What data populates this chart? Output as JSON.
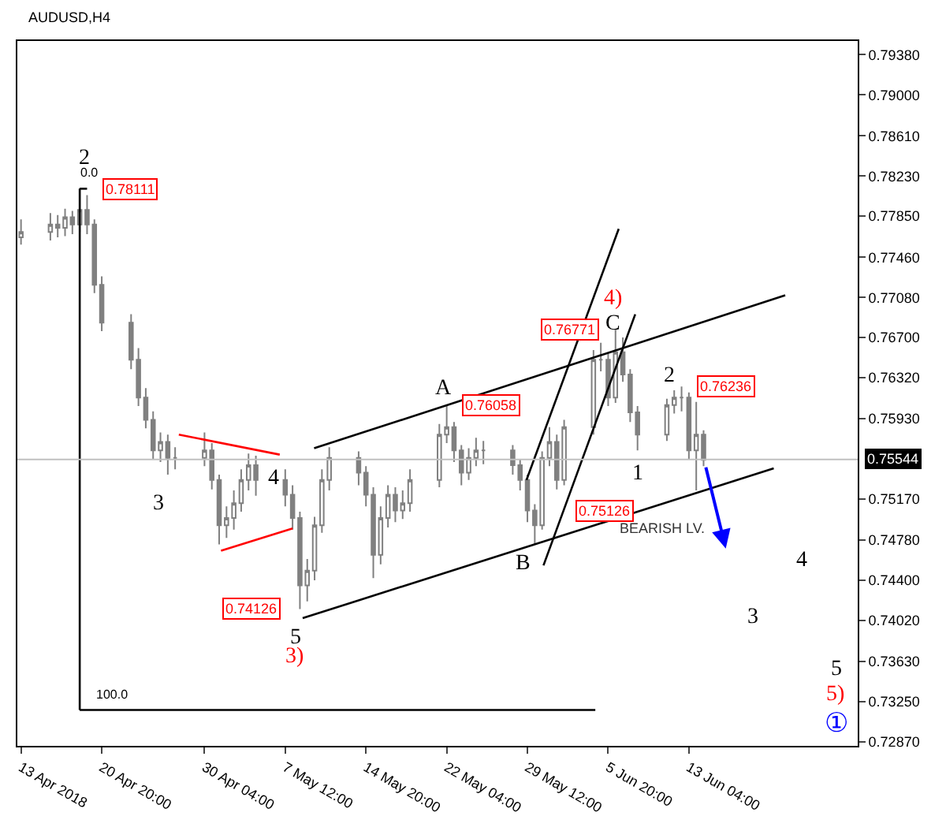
{
  "chart_data": {
    "type": "candlestick",
    "title": "AUDUSD,H4",
    "color": "#808080",
    "x": [
      "2018-04-13T12:00",
      "2018-04-16T04:00",
      "2018-04-16T20:00",
      "2018-04-17T12:00",
      "2018-04-18T04:00",
      "2018-04-18T20:00",
      "2018-04-19T12:00",
      "2018-04-20T04:00",
      "2018-04-20T20:00",
      "2018-04-23T12:00",
      "2018-04-24T04:00",
      "2018-04-24T20:00",
      "2018-04-25T12:00",
      "2018-04-26T04:00",
      "2018-04-26T20:00",
      "2018-04-27T12:00",
      "2018-04-30T04:00",
      "2018-04-30T20:00",
      "2018-05-01T12:00",
      "2018-05-02T04:00",
      "2018-05-02T20:00",
      "2018-05-03T12:00",
      "2018-05-04T04:00",
      "2018-05-04T20:00",
      "2018-05-07T12:00",
      "2018-05-08T04:00",
      "2018-05-08T20:00",
      "2018-05-09T12:00",
      "2018-05-10T04:00",
      "2018-05-10T20:00",
      "2018-05-11T12:00",
      "2018-05-14T04:00",
      "2018-05-14T20:00",
      "2018-05-15T12:00",
      "2018-05-16T04:00",
      "2018-05-16T20:00",
      "2018-05-17T12:00",
      "2018-05-18T04:00",
      "2018-05-18T20:00",
      "2018-05-21T12:00",
      "2018-05-22T04:00",
      "2018-05-22T20:00",
      "2018-05-23T12:00",
      "2018-05-24T04:00",
      "2018-05-24T20:00",
      "2018-05-25T12:00",
      "2018-05-28T04:00",
      "2018-05-28T20:00",
      "2018-05-29T12:00",
      "2018-05-30T04:00",
      "2018-05-30T20:00",
      "2018-05-31T12:00",
      "2018-06-01T04:00",
      "2018-06-01T20:00",
      "2018-06-04T12:00",
      "2018-06-05T04:00",
      "2018-06-05T20:00",
      "2018-06-06T12:00",
      "2018-06-07T04:00",
      "2018-06-07T20:00",
      "2018-06-08T12:00",
      "2018-06-11T04:00",
      "2018-06-11T20:00",
      "2018-06-12T12:00",
      "2018-06-13T04:00",
      "2018-06-13T20:00",
      "2018-06-14T12:00"
    ],
    "ohlc": [
      [
        0.7765,
        0.7782,
        0.7758,
        0.777
      ],
      [
        0.777,
        0.7788,
        0.7762,
        0.7777
      ],
      [
        0.7777,
        0.7786,
        0.7765,
        0.7774
      ],
      [
        0.7774,
        0.7792,
        0.7766,
        0.7784
      ],
      [
        0.7784,
        0.779,
        0.7768,
        0.7777
      ],
      [
        0.7777,
        0.78111,
        0.777,
        0.7791
      ],
      [
        0.7791,
        0.7805,
        0.7768,
        0.7777
      ],
      [
        0.7777,
        0.7782,
        0.7712,
        0.772
      ],
      [
        0.772,
        0.7728,
        0.7676,
        0.7684
      ],
      [
        0.7684,
        0.7692,
        0.764,
        0.7649
      ],
      [
        0.7649,
        0.766,
        0.7605,
        0.7613
      ],
      [
        0.7613,
        0.7622,
        0.7584,
        0.7592
      ],
      [
        0.7592,
        0.76,
        0.7555,
        0.7563
      ],
      [
        0.7563,
        0.758,
        0.7552,
        0.7571
      ],
      [
        0.7571,
        0.7578,
        0.754,
        0.7556
      ],
      [
        0.7556,
        0.7566,
        0.7545,
        0.7556
      ],
      [
        0.7556,
        0.758,
        0.7548,
        0.7563
      ],
      [
        0.7563,
        0.757,
        0.7526,
        0.7535
      ],
      [
        0.7535,
        0.754,
        0.7474,
        0.7492
      ],
      [
        0.7492,
        0.751,
        0.748,
        0.7499
      ],
      [
        0.7499,
        0.7525,
        0.7488,
        0.7513
      ],
      [
        0.7513,
        0.7545,
        0.7505,
        0.7535
      ],
      [
        0.7535,
        0.756,
        0.7525,
        0.7549
      ],
      [
        0.7549,
        0.7558,
        0.752,
        0.7535
      ],
      [
        0.7535,
        0.7545,
        0.751,
        0.7521
      ],
      [
        0.7521,
        0.753,
        0.7488,
        0.7499
      ],
      [
        0.7499,
        0.7505,
        0.74126,
        0.7435
      ],
      [
        0.7435,
        0.746,
        0.742,
        0.7449
      ],
      [
        0.7449,
        0.75,
        0.744,
        0.7492
      ],
      [
        0.7492,
        0.7545,
        0.7485,
        0.7535
      ],
      [
        0.7535,
        0.7566,
        0.7525,
        0.7556
      ],
      [
        0.7556,
        0.7562,
        0.753,
        0.7542
      ],
      [
        0.7542,
        0.7548,
        0.751,
        0.7521
      ],
      [
        0.7521,
        0.7528,
        0.7442,
        0.7464
      ],
      [
        0.7464,
        0.751,
        0.7455,
        0.7499
      ],
      [
        0.7499,
        0.753,
        0.749,
        0.7521
      ],
      [
        0.7521,
        0.7528,
        0.7495,
        0.7506
      ],
      [
        0.7506,
        0.7525,
        0.7498,
        0.7513
      ],
      [
        0.7513,
        0.7545,
        0.7505,
        0.7535
      ],
      [
        0.7535,
        0.7588,
        0.7528,
        0.7578
      ],
      [
        0.7578,
        0.76058,
        0.757,
        0.7585
      ],
      [
        0.7585,
        0.759,
        0.7552,
        0.7563
      ],
      [
        0.7563,
        0.7568,
        0.753,
        0.7542
      ],
      [
        0.7542,
        0.7565,
        0.7535,
        0.7556
      ],
      [
        0.7556,
        0.7575,
        0.7548,
        0.7563
      ],
      [
        0.7563,
        0.7572,
        0.755,
        0.7563
      ],
      [
        0.7563,
        0.7568,
        0.754,
        0.7549
      ],
      [
        0.7549,
        0.7555,
        0.7525,
        0.7535
      ],
      [
        0.7535,
        0.754,
        0.7495,
        0.7506
      ],
      [
        0.7506,
        0.7512,
        0.7474,
        0.7492
      ],
      [
        0.7492,
        0.7562,
        0.7488,
        0.7556
      ],
      [
        0.7556,
        0.7585,
        0.7548,
        0.7571
      ],
      [
        0.7571,
        0.7578,
        0.7526,
        0.7535
      ],
      [
        0.7535,
        0.7592,
        0.753,
        0.7585
      ],
      [
        0.7585,
        0.7658,
        0.7578,
        0.7649
      ],
      [
        0.7649,
        0.7665,
        0.7638,
        0.7649
      ],
      [
        0.7649,
        0.7655,
        0.7605,
        0.7613
      ],
      [
        0.7613,
        0.76771,
        0.7608,
        0.7656
      ],
      [
        0.7656,
        0.767,
        0.7628,
        0.7635
      ],
      [
        0.7635,
        0.764,
        0.759,
        0.7599
      ],
      [
        0.7599,
        0.7605,
        0.7563,
        0.7578
      ],
      [
        0.7578,
        0.7612,
        0.7572,
        0.7606
      ],
      [
        0.7606,
        0.762,
        0.7598,
        0.7613
      ],
      [
        0.7613,
        0.76236,
        0.76,
        0.7613
      ],
      [
        0.7613,
        0.7618,
        0.7555,
        0.7563
      ],
      [
        0.7563,
        0.7609,
        0.7525,
        0.7578
      ],
      [
        0.7578,
        0.7582,
        0.7548,
        0.7554
      ]
    ],
    "series": [
      {
        "type": "line",
        "color": "#ff0000",
        "x": [
          "2018-04-27T20:00",
          "2018-05-07T00:00"
        ],
        "values": [
          0.7578,
          0.7559
        ]
      },
      {
        "type": "line",
        "color": "#ff0000",
        "x": [
          "2018-05-01T16:00",
          "2018-05-08T04:00"
        ],
        "values": [
          0.7468,
          0.7489
        ]
      },
      {
        "type": "line",
        "color": "#000000",
        "x": [
          "2018-05-09T02:00",
          "2018-06-20T21:00"
        ],
        "values": [
          0.7404,
          0.7546
        ]
      },
      {
        "type": "line",
        "color": "#000000",
        "x": [
          "2018-05-10T03:00",
          "2018-06-21T22:00"
        ],
        "values": [
          0.7565,
          0.771
        ]
      },
      {
        "type": "line",
        "color": "#000000",
        "x": [
          "2018-05-29T10:00",
          "2018-06-06T19:00"
        ],
        "values": [
          0.7535,
          0.7773
        ]
      },
      {
        "type": "line",
        "color": "#000000",
        "x": [
          "2018-05-30T23:00",
          "2018-06-08T07:00"
        ],
        "values": [
          0.7454,
          0.7692
        ]
      },
      {
        "type": "line",
        "color": "#000000",
        "x": [
          "2018-04-18T20:00",
          "2018-04-18T20:00"
        ],
        "values": [
          0.7811,
          0.7317
        ]
      },
      {
        "type": "line",
        "color": "#000000",
        "x": [
          "2018-04-18T20:00",
          "2018-04-19T12:00"
        ],
        "values": [
          0.7811,
          0.7811
        ]
      },
      {
        "type": "line",
        "color": "#000000",
        "x": [
          "2018-04-18T20:00",
          "2018-06-04T16:00"
        ],
        "values": [
          0.7317,
          0.7317
        ]
      }
    ],
    "xlim": [
      "2018-04-13T04:00",
      "2018-06-28T12:00"
    ],
    "xticks": [
      {
        "value": "2018-04-13T12:00",
        "label": "13 Apr 2018"
      },
      {
        "value": "2018-04-20T20:00",
        "label": "20 Apr 20:00"
      },
      {
        "value": "2018-04-30T04:00",
        "label": "30 Apr 04:00"
      },
      {
        "value": "2018-05-07T12:00",
        "label": "7 May 12:00"
      },
      {
        "value": "2018-05-14T20:00",
        "label": "14 May 20:00"
      },
      {
        "value": "2018-05-22T04:00",
        "label": "22 May 04:00"
      },
      {
        "value": "2018-05-29T12:00",
        "label": "29 May 12:00"
      },
      {
        "value": "2018-06-05T20:00",
        "label": "5 Jun 20:00"
      },
      {
        "value": "2018-06-13T04:00",
        "label": "13 Jun 04:00"
      }
    ],
    "ylim": [
      0.7283,
      0.7951
    ],
    "yticks": [
      {
        "value": 0.7938,
        "label": "0.79380"
      },
      {
        "value": 0.79,
        "label": "0.79000"
      },
      {
        "value": 0.7861,
        "label": "0.78610"
      },
      {
        "value": 0.7823,
        "label": "0.78230"
      },
      {
        "value": 0.7785,
        "label": "0.77850"
      },
      {
        "value": 0.7746,
        "label": "0.77460"
      },
      {
        "value": 0.7708,
        "label": "0.77080"
      },
      {
        "value": 0.767,
        "label": "0.76700"
      },
      {
        "value": 0.7632,
        "label": "0.76320"
      },
      {
        "value": 0.7593,
        "label": "0.75930"
      },
      {
        "value": 0.7517,
        "label": "0.75170"
      },
      {
        "value": 0.7478,
        "label": "0.74780"
      },
      {
        "value": 0.744,
        "label": "0.74400"
      },
      {
        "value": 0.7402,
        "label": "0.74020"
      },
      {
        "value": 0.7363,
        "label": "0.73630"
      },
      {
        "value": 0.7325,
        "label": "0.73250"
      },
      {
        "value": 0.7287,
        "label": "0.72870"
      }
    ],
    "ref_lines": [
      {
        "axis": "y",
        "value": 0.75544,
        "label": "0.75544",
        "color": "#c0c0c0"
      }
    ],
    "annotations": [
      {
        "text": "0.78111",
        "x": "2018-04-18T20:00",
        "y": 0.78111
      },
      {
        "text": "0.74126",
        "x": "2018-05-08T20:00",
        "y": 0.74126
      },
      {
        "text": "0.76058",
        "x": "2018-05-22T04:00",
        "y": 0.76058
      },
      {
        "text": "0.76771",
        "x": "2018-06-06T12:00",
        "y": 0.76771
      },
      {
        "text": "0.76236",
        "x": "2018-06-12T12:00",
        "y": 0.76236
      },
      {
        "text": "0.0",
        "x": "2018-04-18T20:00",
        "y": 0.7817
      },
      {
        "text": "100.0",
        "x": "2018-04-19T12:00",
        "y": 0.7322
      },
      "0.75126",
      "2",
      "3",
      "4",
      "5",
      "3)",
      "A",
      "B",
      "C",
      "4)",
      "1",
      "2",
      "BEARISH LV.",
      "4",
      "3",
      "5",
      "5)",
      "①"
    ]
  }
}
